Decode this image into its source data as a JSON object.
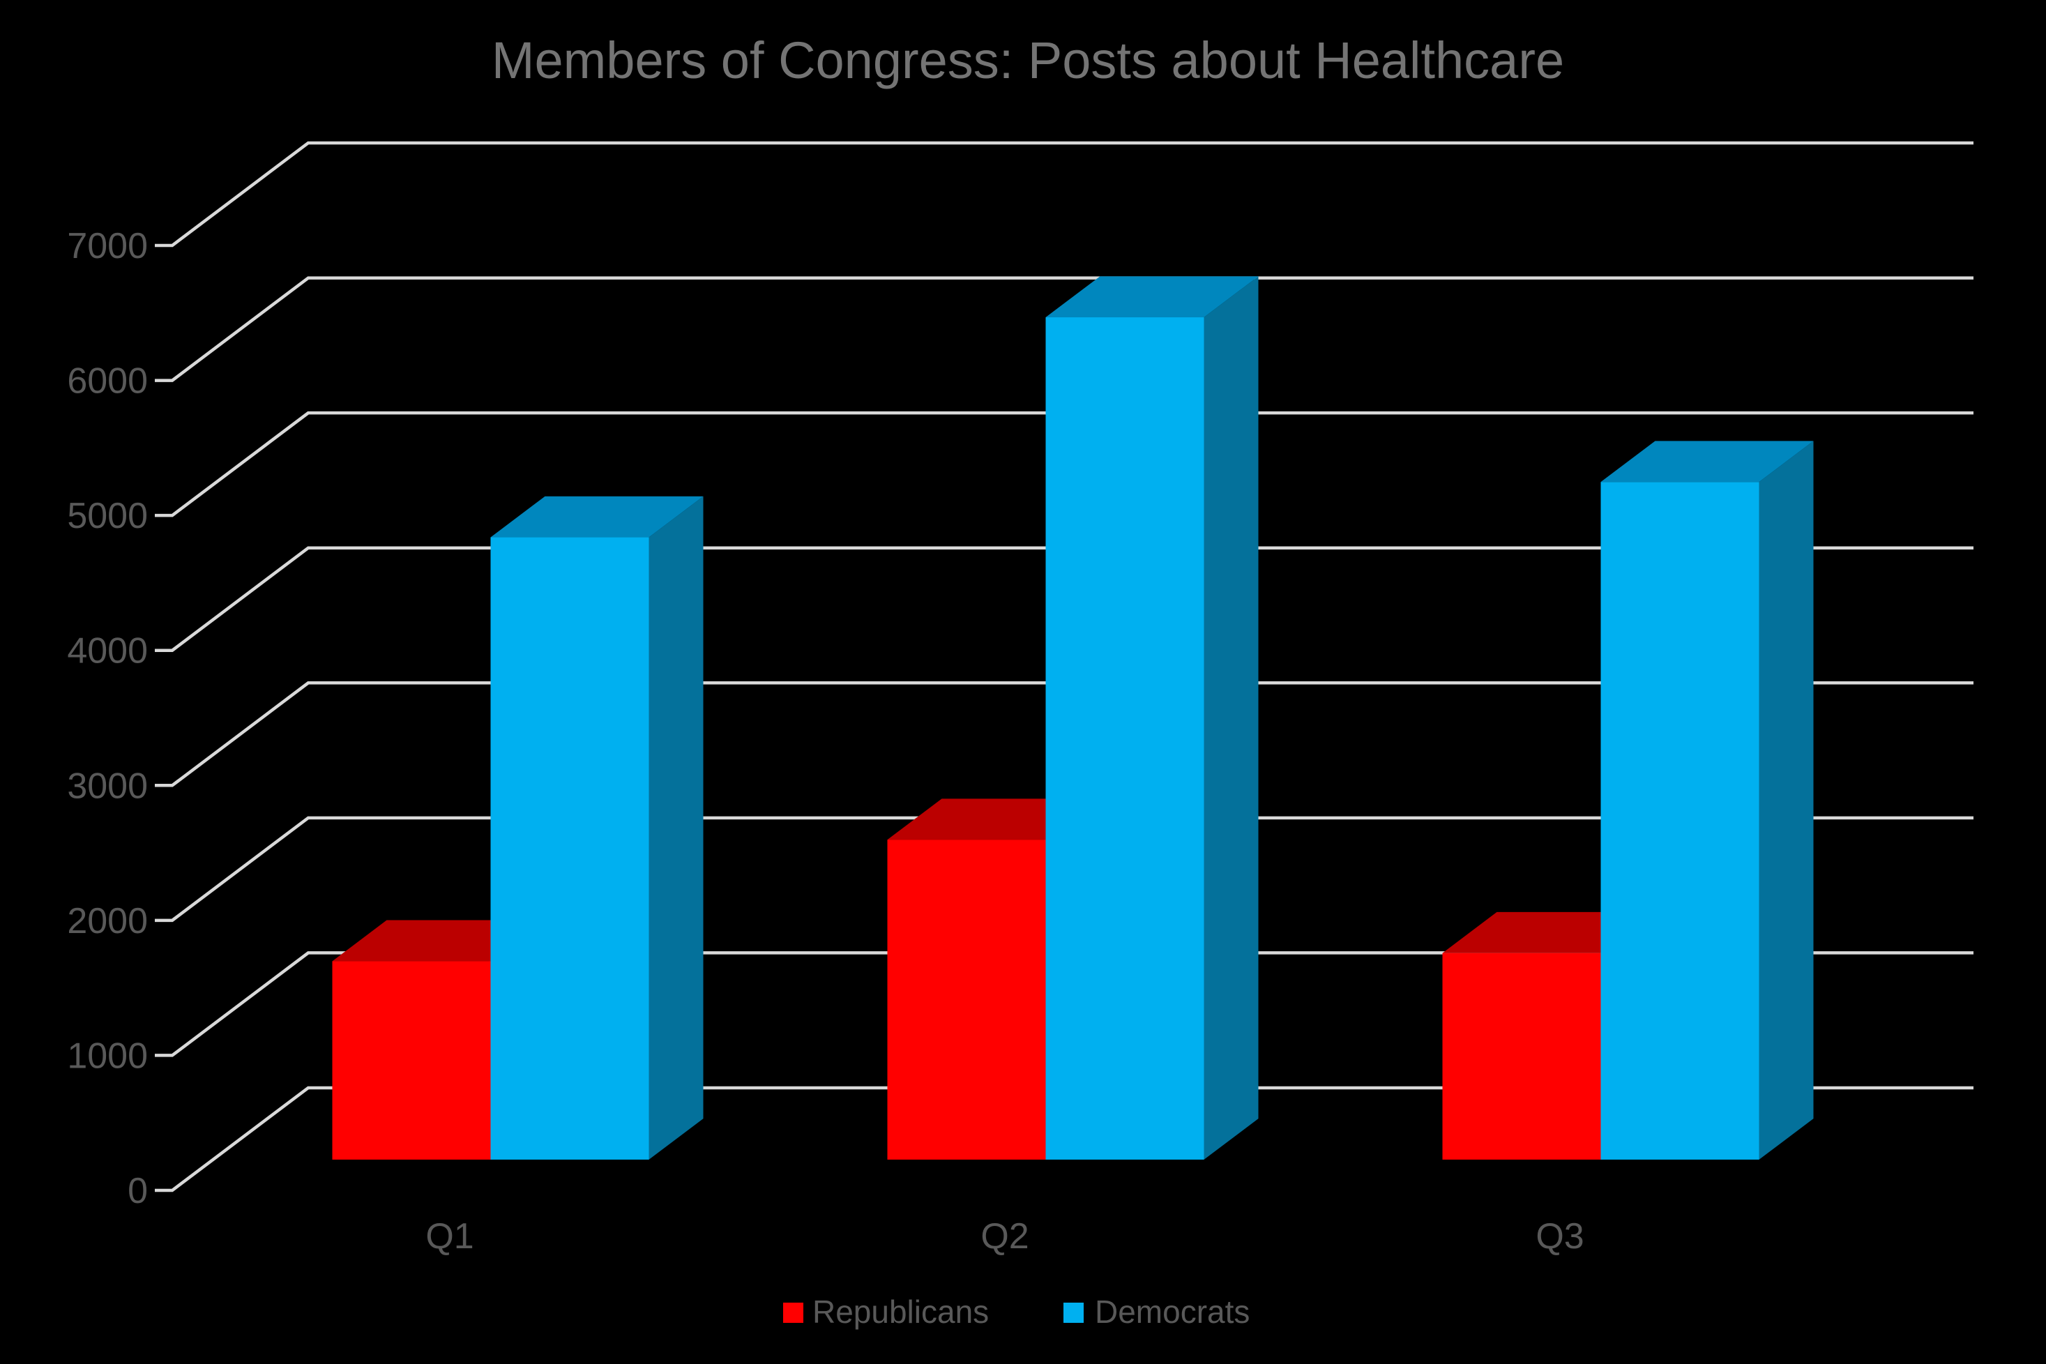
{
  "chart_data": {
    "type": "bar",
    "subtype": "3d-clustered-column",
    "title": "Members of Congress: Posts about Healthcare",
    "categories": [
      "Q1",
      "Q2",
      "Q3"
    ],
    "series": [
      {
        "name": "Republicans",
        "values": [
          1470,
          2370,
          1530
        ],
        "color": "#FF0000",
        "color_top": "#BB0000",
        "color_side": "#8E0000"
      },
      {
        "name": "Democrats",
        "values": [
          4610,
          6240,
          5020
        ],
        "color": "#00B0F0",
        "color_top": "#0087BE",
        "color_side": "#04719B"
      }
    ],
    "xlabel": "",
    "ylabel": "",
    "ylim": [
      0,
      7000
    ],
    "ytick_step": 1000,
    "ytick_labels": [
      "0",
      "1000",
      "2000",
      "3000",
      "4000",
      "5000",
      "6000",
      "7000"
    ],
    "grid": "on",
    "legend_position": "bottom",
    "background_color": "#000000",
    "gridline_color": "#D9D9D9",
    "axis_label_color": "#595959",
    "title_color": "#747474"
  }
}
